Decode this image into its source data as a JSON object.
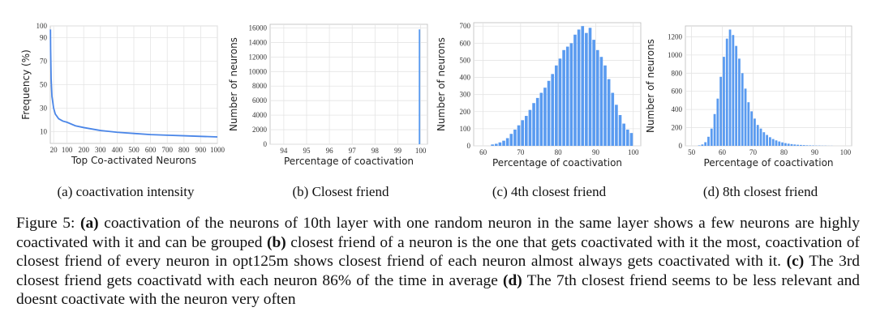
{
  "chart_data": [
    {
      "type": "line",
      "caption": "(a) coactivation intensity",
      "xlabel": "Top Co-activated Neurons",
      "ylabel": "Frequency (%)",
      "x": [
        1,
        2,
        5,
        10,
        20,
        30,
        50,
        75,
        100,
        150,
        200,
        300,
        400,
        500,
        600,
        700,
        800,
        900,
        1000
      ],
      "values": [
        97,
        80,
        55,
        40,
        30,
        25,
        21,
        19,
        18,
        15,
        13.5,
        11,
        9.5,
        8.5,
        7.5,
        7,
        6.5,
        6,
        5.5
      ],
      "color": "#4a86e8",
      "xlim": [
        0,
        1000
      ],
      "ylim": [
        0,
        100
      ],
      "xticks": [
        20,
        100,
        200,
        300,
        400,
        500,
        600,
        700,
        800,
        900,
        1000
      ],
      "yticks": [
        10,
        30,
        50,
        70,
        90,
        100
      ],
      "grid": true
    },
    {
      "type": "histogram",
      "caption": "(b) Closest friend",
      "xlabel": "Percentage of coactivation",
      "ylabel": "Number of neurons",
      "bins": [
        99.9,
        100
      ],
      "counts": [
        15800
      ],
      "color": "#5a9bf0",
      "xlim": [
        93.4,
        100.3
      ],
      "ylim": [
        0,
        16500
      ],
      "xticks": [
        94,
        95,
        96,
        97,
        98,
        99,
        100
      ],
      "yticks": [
        0,
        2000,
        4000,
        6000,
        8000,
        10000,
        12000,
        14000,
        16000
      ],
      "grid": true
    },
    {
      "type": "histogram",
      "caption": "(c) 4th closest friend",
      "xlabel": "Percentage of coactivation",
      "ylabel": "Number of neurons",
      "bins": [
        62,
        63,
        64,
        65,
        66,
        67,
        68,
        69,
        70,
        71,
        72,
        73,
        74,
        75,
        76,
        77,
        78,
        79,
        80,
        81,
        82,
        83,
        84,
        85,
        86,
        87,
        88,
        89,
        90,
        91,
        92,
        93,
        94,
        95,
        96,
        97,
        98,
        99,
        100
      ],
      "counts": [
        8,
        12,
        20,
        30,
        45,
        70,
        95,
        120,
        150,
        175,
        210,
        250,
        280,
        310,
        340,
        380,
        420,
        470,
        510,
        560,
        580,
        600,
        650,
        680,
        700,
        660,
        690,
        620,
        560,
        520,
        470,
        390,
        310,
        240,
        180,
        130,
        95,
        75
      ],
      "color": "#5a9bf0",
      "xlim": [
        57.5,
        102
      ],
      "ylim": [
        0,
        720
      ],
      "xticks": [
        60,
        70,
        80,
        90,
        100
      ],
      "yticks": [
        0,
        100,
        200,
        300,
        400,
        500,
        600,
        700
      ],
      "grid": true
    },
    {
      "type": "histogram",
      "caption": "(d) 8th closest friend",
      "xlabel": "Percentage of coactivation",
      "ylabel": "Number of neurons",
      "bins": [
        52,
        53,
        54,
        55,
        56,
        57,
        58,
        59,
        60,
        61,
        62,
        63,
        64,
        65,
        66,
        67,
        68,
        69,
        70,
        71,
        72,
        73,
        74,
        75,
        76,
        77,
        78,
        79,
        80,
        81,
        82,
        83,
        84,
        85,
        86,
        87,
        88,
        89,
        90,
        91,
        92,
        93,
        94,
        95,
        96
      ],
      "counts": [
        5,
        15,
        40,
        100,
        190,
        350,
        520,
        760,
        980,
        1180,
        1280,
        1220,
        1100,
        960,
        800,
        630,
        480,
        380,
        300,
        230,
        190,
        150,
        120,
        95,
        75,
        60,
        48,
        38,
        30,
        24,
        19,
        15,
        12,
        10,
        8,
        6,
        5,
        4,
        3,
        3,
        2,
        2,
        1,
        1
      ],
      "color": "#5a9bf0",
      "xlim": [
        48,
        102
      ],
      "ylim": [
        0,
        1320
      ],
      "xticks": [
        50,
        60,
        70,
        80,
        90,
        100
      ],
      "yticks": [
        0,
        200,
        400,
        600,
        800,
        1000,
        1200
      ],
      "grid": true
    }
  ],
  "caption": [
    {
      "text": "Figure 5: ",
      "bold": false
    },
    {
      "text": "(a)",
      "bold": true
    },
    {
      "text": " coactivation of the neurons of 10th layer with one random neuron in the same layer shows a few neurons are highly coactivated with it and can be grouped ",
      "bold": false
    },
    {
      "text": "(b)",
      "bold": true
    },
    {
      "text": " closest friend of a neuron is the one that gets coactivated with it the most, coactivation of closest friend of every neuron in opt125m shows closest friend of each neuron almost always gets coactivated with it. ",
      "bold": false
    },
    {
      "text": "(c)",
      "bold": true
    },
    {
      "text": " The 3rd closest friend gets coactivatd with each neuron 86% of the time in average ",
      "bold": false
    },
    {
      "text": "(d)",
      "bold": true
    },
    {
      "text": " The 7th closest friend seems to be less relevant and doesnt coactivate with the neuron very often",
      "bold": false
    }
  ]
}
